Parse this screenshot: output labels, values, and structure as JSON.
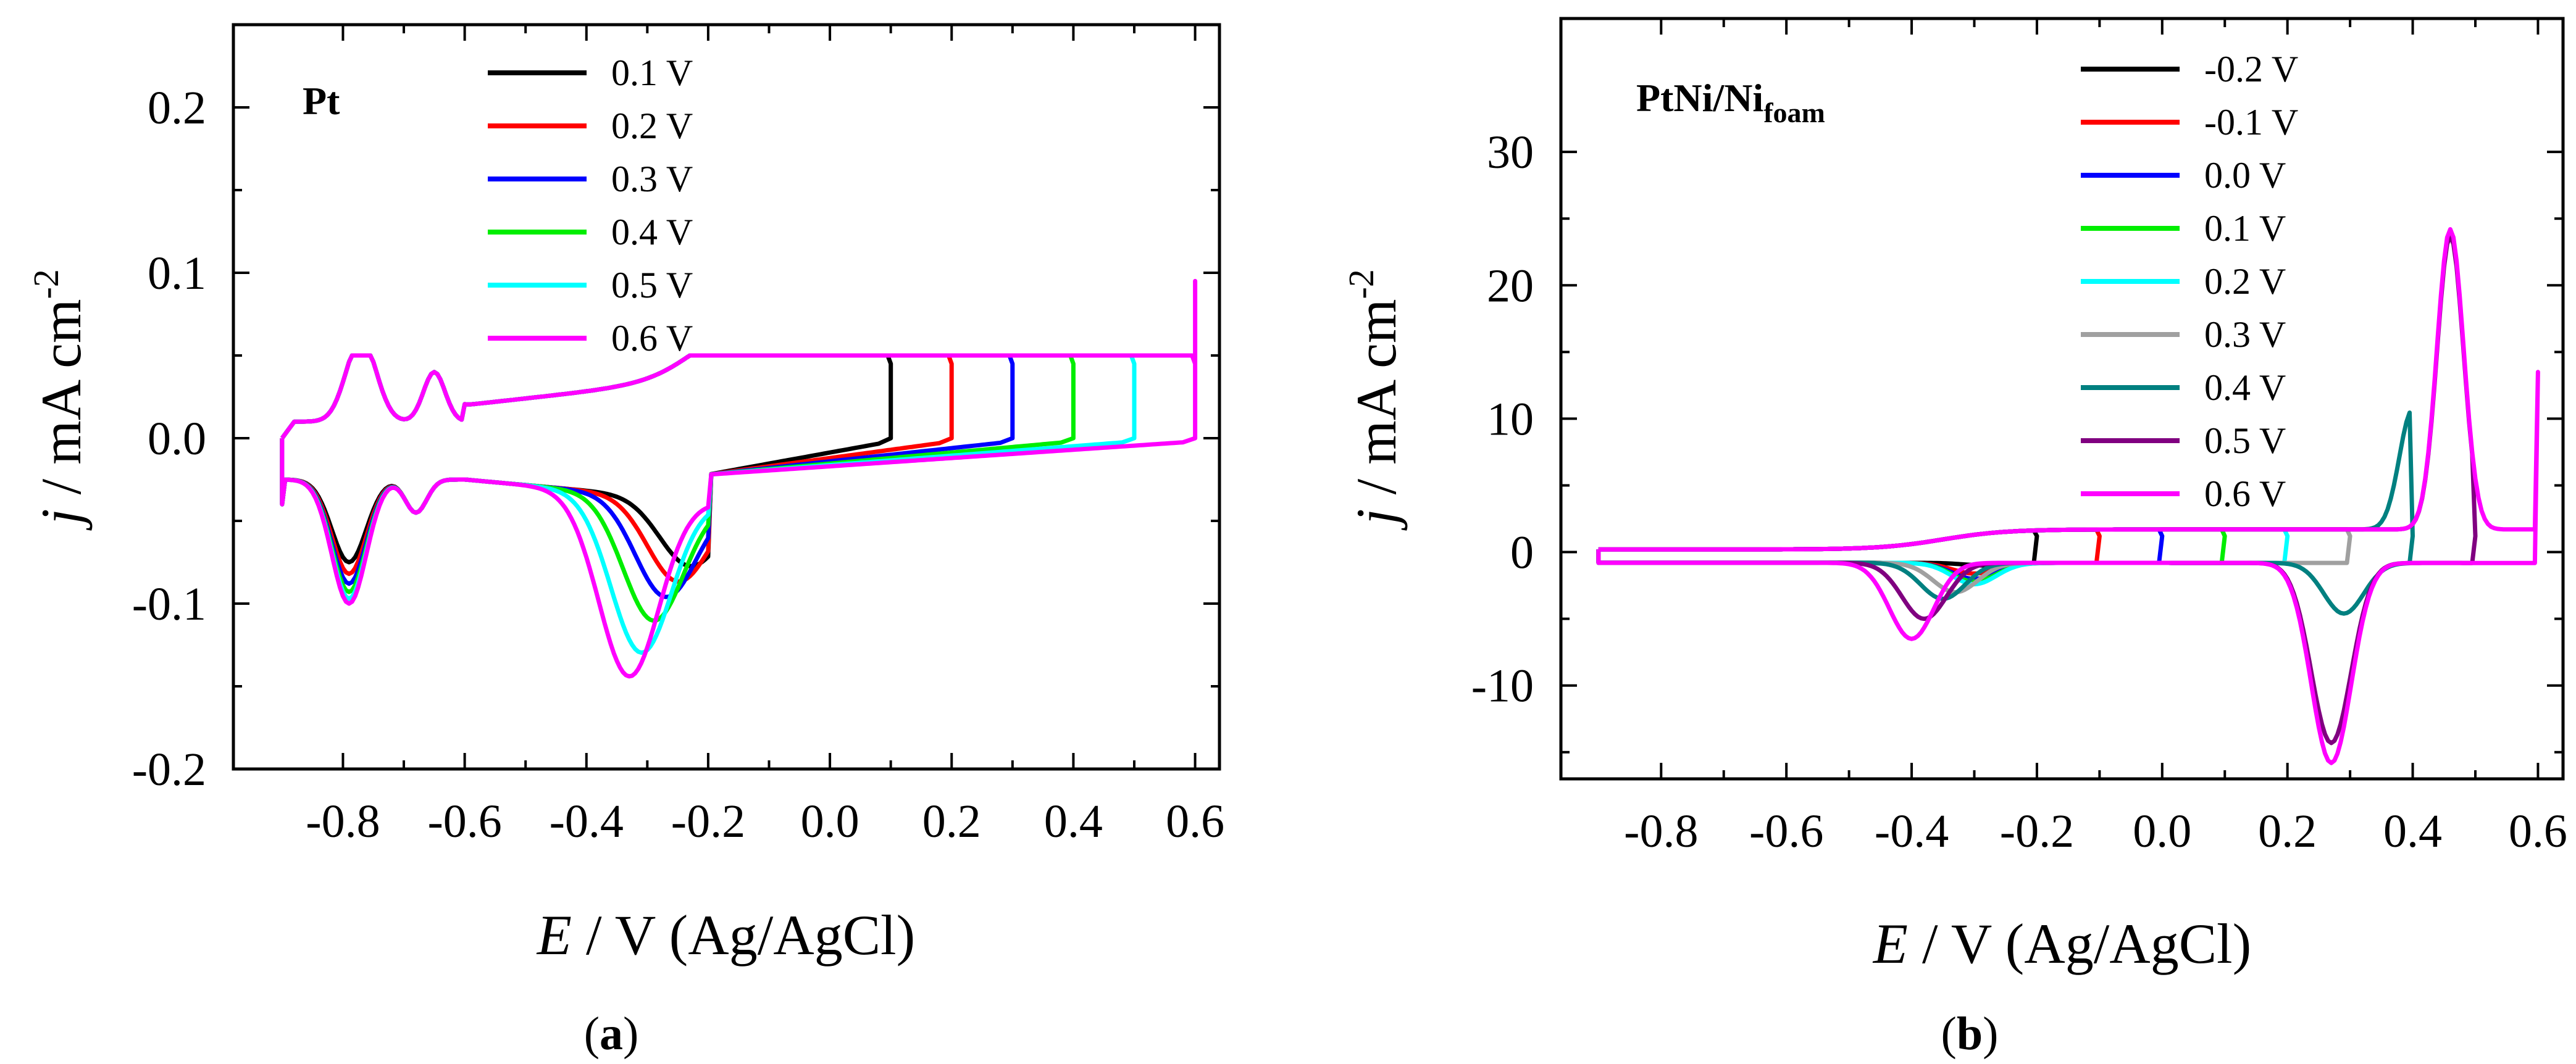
{
  "chart_data": [
    {
      "type": "line",
      "panel_label": "(a)",
      "panel_label_parts": {
        "open": "(",
        "letter": "a",
        "close": ")"
      },
      "title": "Pt",
      "xlabel": "E / V (Ag/AgCl)",
      "xlabel_parts": {
        "italic": "E",
        "rest": " / V (Ag/AgCl)"
      },
      "ylabel": "j / mA cm-2",
      "ylabel_parts": {
        "italic": "j",
        "rest": " / mA cm",
        "sup": "-2"
      },
      "xlim": [
        -0.98,
        0.64
      ],
      "ylim": [
        -0.2,
        0.25
      ],
      "xticks": [
        -0.8,
        -0.6,
        -0.4,
        -0.2,
        0.0,
        0.2,
        0.4,
        0.6
      ],
      "xtick_labels": [
        "-0.8",
        "-0.6",
        "-0.4",
        "-0.2",
        "0.0",
        "0.2",
        "0.4",
        "0.6"
      ],
      "yticks": [
        0.2,
        0.1,
        0.0,
        -0.1,
        -0.2
      ],
      "ytick_labels": [
        "0.2",
        "0.1",
        "0.0",
        "-0.1",
        "-0.2"
      ],
      "legend_position": "top-center",
      "series": [
        {
          "name": "0.1 V",
          "color": "#000000",
          "upper_limit": 0.1,
          "cathodic_peak": -0.07,
          "cathodic_peak_E": -0.23,
          "hupd_peak": -0.075
        },
        {
          "name": "0.2 V",
          "color": "#ff0000",
          "upper_limit": 0.2,
          "cathodic_peak": -0.08,
          "cathodic_peak_E": -0.25,
          "hupd_peak": -0.082
        },
        {
          "name": "0.3 V",
          "color": "#0000ff",
          "upper_limit": 0.3,
          "cathodic_peak": -0.09,
          "cathodic_peak_E": -0.27,
          "hupd_peak": -0.088
        },
        {
          "name": "0.4 V",
          "color": "#00ee00",
          "upper_limit": 0.4,
          "cathodic_peak": -0.105,
          "cathodic_peak_E": -0.29,
          "hupd_peak": -0.093
        },
        {
          "name": "0.5 V",
          "color": "#00ffff",
          "upper_limit": 0.5,
          "cathodic_peak": -0.125,
          "cathodic_peak_E": -0.31,
          "hupd_peak": -0.097
        },
        {
          "name": "0.6 V",
          "color": "#ff00ff",
          "upper_limit": 0.6,
          "cathodic_peak": -0.14,
          "cathodic_peak_E": -0.33,
          "hupd_peak": -0.1
        }
      ]
    },
    {
      "type": "line",
      "panel_label": "(b)",
      "panel_label_parts": {
        "open": "(",
        "letter": "b",
        "close": ")"
      },
      "title": "PtNi/Nifoam",
      "title_parts": {
        "main": "PtNi/Ni",
        "sub": "foam"
      },
      "xlabel": "E / V (Ag/AgCl)",
      "xlabel_parts": {
        "italic": "E",
        "rest": " / V (Ag/AgCl)"
      },
      "ylabel": "j / mA cm-2",
      "ylabel_parts": {
        "italic": "j",
        "rest": " / mA cm",
        "sup": "-2"
      },
      "xlim": [
        -0.96,
        0.64
      ],
      "ylim": [
        -17,
        40
      ],
      "xticks": [
        -0.8,
        -0.6,
        -0.4,
        -0.2,
        0.0,
        0.2,
        0.4,
        0.6
      ],
      "xtick_labels": [
        "-0.8",
        "-0.6",
        "-0.4",
        "-0.2",
        "0.0",
        "0.2",
        "0.4",
        "0.6"
      ],
      "yticks": [
        30,
        20,
        10,
        0,
        -10
      ],
      "ytick_labels": [
        "30",
        "20",
        "10",
        "0",
        "-10"
      ],
      "legend_position": "top-center",
      "series": [
        {
          "name": "-0.2 V",
          "color": "#000000",
          "upper_limit": -0.2,
          "cathodic_peak": -1.0,
          "cathodic_peak_E": -0.28,
          "anodic_peak": 0,
          "anodic_peak_E": 0
        },
        {
          "name": "-0.1 V",
          "color": "#ff0000",
          "upper_limit": -0.1,
          "cathodic_peak": -1.6,
          "cathodic_peak_E": -0.3,
          "anodic_peak": 0,
          "anodic_peak_E": 0
        },
        {
          "name": " 0.0 V",
          "color": "#0000ff",
          "upper_limit": 0.0,
          "cathodic_peak": -2.0,
          "cathodic_peak_E": -0.3,
          "anodic_peak": 0,
          "anodic_peak_E": 0
        },
        {
          "name": " 0.1 V",
          "color": "#00ee00",
          "upper_limit": 0.1,
          "cathodic_peak": -2.2,
          "cathodic_peak_E": -0.3,
          "anodic_peak": 0,
          "anodic_peak_E": 0
        },
        {
          "name": " 0.2 V",
          "color": "#00ffff",
          "upper_limit": 0.2,
          "cathodic_peak": -2.4,
          "cathodic_peak_E": -0.3,
          "anodic_peak": 0,
          "anodic_peak_E": 0
        },
        {
          "name": " 0.3 V",
          "color": "#a0a0a0",
          "upper_limit": 0.3,
          "cathodic_peak": -3.0,
          "cathodic_peak_E": -0.33,
          "anodic_peak": 0,
          "anodic_peak_E": 0
        },
        {
          "name": " 0.4 V",
          "color": "#008080",
          "upper_limit": 0.4,
          "cathodic_peak": -3.5,
          "cathodic_peak_E": -0.35,
          "anodic_peak": 9,
          "anodic_peak_E": 0.4,
          "ni_reduction_peak": -3.8,
          "ni_reduction_peak_E": 0.29
        },
        {
          "name": " 0.5 V",
          "color": "#800080",
          "upper_limit": 0.5,
          "cathodic_peak": -5.0,
          "cathodic_peak_E": -0.38,
          "anodic_peak": 22,
          "anodic_peak_E": 0.46,
          "ni_reduction_peak": -13.5,
          "ni_reduction_peak_E": 0.27
        },
        {
          "name": " 0.6 V",
          "color": "#ff00ff",
          "upper_limit": 0.6,
          "cathodic_peak": -6.5,
          "cathodic_peak_E": -0.4,
          "anodic_peak": 22.5,
          "anodic_peak_E": 0.46,
          "ni_reduction_peak": -15,
          "ni_reduction_peak_E": 0.27
        }
      ]
    }
  ]
}
